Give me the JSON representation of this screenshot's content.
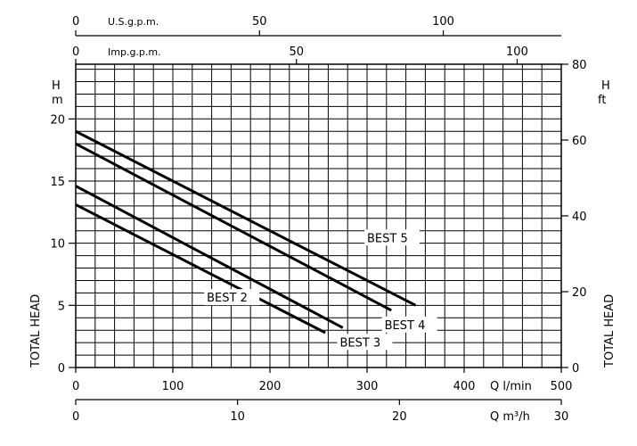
{
  "chart_data": {
    "type": "line",
    "axes": {
      "x_bottom_primary": {
        "label": "Q l/min",
        "range": [
          0,
          500
        ],
        "ticks": [
          0,
          100,
          200,
          300,
          400,
          500
        ]
      },
      "x_bottom_secondary": {
        "label": "Q m³/h",
        "range": [
          0,
          30
        ],
        "ticks": [
          0,
          10,
          20,
          30
        ]
      },
      "x_top_us": {
        "label": "U.S.g.p.m.",
        "range": [
          0,
          132.1
        ],
        "ticks": [
          0,
          50,
          100
        ]
      },
      "x_top_imp": {
        "label": "Imp.g.p.m.",
        "range": [
          0,
          110
        ],
        "ticks": [
          0,
          50,
          100
        ]
      },
      "y_left": {
        "unit_label": "H\nm",
        "title": "TOTAL HEAD",
        "range": [
          0,
          24.4
        ],
        "ticks": [
          0,
          5,
          10,
          15,
          20
        ]
      },
      "y_right": {
        "unit_label": "H\nft",
        "title": "TOTAL HEAD",
        "range": [
          0,
          80
        ],
        "ticks": [
          0,
          20,
          40,
          60,
          80
        ]
      }
    },
    "grid": true,
    "series": [
      {
        "name": "BEST 5",
        "x": [
          0,
          350
        ],
        "y": [
          19.0,
          5.0
        ]
      },
      {
        "name": "BEST 4",
        "x": [
          0,
          325
        ],
        "y": [
          18.0,
          4.6
        ]
      },
      {
        "name": "BEST 3",
        "x": [
          0,
          275
        ],
        "y": [
          14.6,
          3.2
        ]
      },
      {
        "name": "BEST 2",
        "x": [
          0,
          257
        ],
        "y": [
          13.1,
          2.8
        ]
      }
    ],
    "annotations": [
      {
        "text": "BEST 5",
        "x": 300,
        "y": 10.1
      },
      {
        "text": "BEST 4",
        "x": 318,
        "y": 3.1
      },
      {
        "text": "BEST 3",
        "x": 272,
        "y": 1.7
      },
      {
        "text": "BEST 2",
        "x": 135,
        "y": 5.3
      }
    ]
  }
}
